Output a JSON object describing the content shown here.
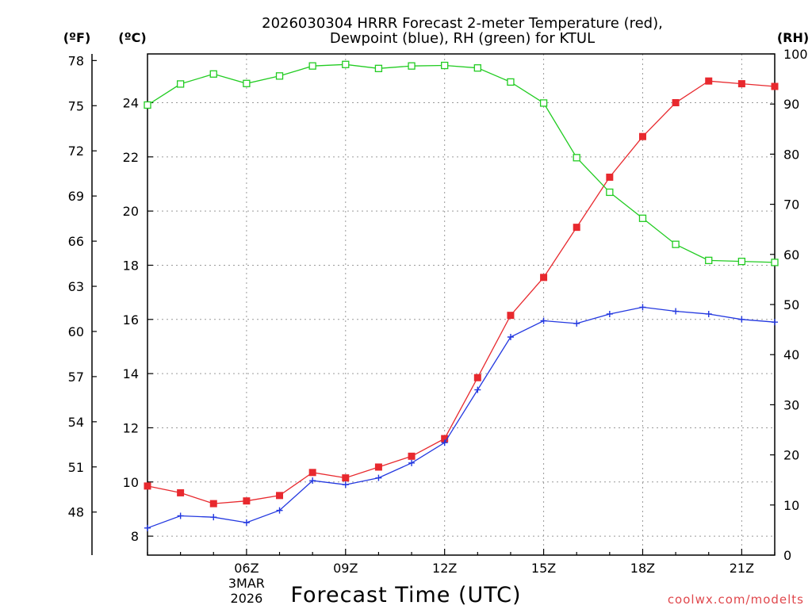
{
  "title_line1": "2026030304 HRRR Forecast 2-meter Temperature (red),",
  "title_line2": "Dewpoint (blue), RH (green) for KTUL",
  "credit": "coolwx.com/modelts",
  "colors": {
    "temperature": "#e8292e",
    "dewpoint": "#2338e0",
    "rh": "#22cc22"
  },
  "chart_data": {
    "type": "line",
    "title": "2026030304 HRRR Forecast 2-meter Temperature (red), Dewpoint (blue), RH (green) for KTUL",
    "xlabel": "Forecast Time (UTC)",
    "x": [
      3,
      4,
      5,
      6,
      7,
      8,
      9,
      10,
      11,
      12,
      13,
      14,
      15,
      16,
      17,
      18,
      19,
      20,
      21,
      22
    ],
    "x_unit": "hour UTC, 3 Mar 2026",
    "xlim": [
      3,
      22
    ],
    "x_ticks": [
      {
        "x": 6,
        "label": "06Z",
        "date1": "3MAR",
        "date2": "2026"
      },
      {
        "x": 9,
        "label": "09Z"
      },
      {
        "x": 12,
        "label": "12Z"
      },
      {
        "x": 15,
        "label": "15Z"
      },
      {
        "x": 18,
        "label": "18Z"
      },
      {
        "x": 21,
        "label": "21Z"
      }
    ],
    "x_grid": [
      6,
      9,
      12,
      15,
      18,
      21
    ],
    "left_axis_f": {
      "label": "(ºF)",
      "ticks": [
        48,
        51,
        54,
        57,
        60,
        63,
        66,
        69,
        72,
        75,
        78
      ]
    },
    "left_axis_c": {
      "label": "(ºC)",
      "ylim": [
        7.3,
        25.8
      ],
      "ticks": [
        8,
        10,
        12,
        14,
        16,
        18,
        20,
        22,
        24
      ]
    },
    "right_axis_rh": {
      "label": "(RH)",
      "ylim": [
        0,
        100
      ],
      "ticks": [
        0,
        10,
        20,
        30,
        40,
        50,
        60,
        70,
        80,
        90,
        100
      ]
    },
    "series": [
      {
        "name": "Temperature",
        "axis": "celsius",
        "marker": "filled-square",
        "values": [
          9.85,
          9.6,
          9.2,
          9.3,
          9.5,
          10.35,
          10.15,
          10.55,
          10.95,
          11.6,
          13.85,
          16.15,
          17.55,
          19.4,
          21.25,
          22.75,
          24.0,
          24.8,
          24.7,
          24.6
        ]
      },
      {
        "name": "Dewpoint",
        "axis": "celsius",
        "marker": "plus",
        "values": [
          8.3,
          8.75,
          8.7,
          8.5,
          8.95,
          10.05,
          9.9,
          10.15,
          10.7,
          11.45,
          13.4,
          15.35,
          15.95,
          15.85,
          16.2,
          16.45,
          16.3,
          16.2,
          16.0,
          15.9
        ]
      },
      {
        "name": "RH",
        "axis": "rh",
        "marker": "open-square",
        "values": [
          89.8,
          94.0,
          96.0,
          94.1,
          95.6,
          97.6,
          97.9,
          97.1,
          97.6,
          97.7,
          97.2,
          94.4,
          90.2,
          79.3,
          72.4,
          67.2,
          62.0,
          58.8,
          58.6,
          58.4
        ]
      }
    ]
  }
}
